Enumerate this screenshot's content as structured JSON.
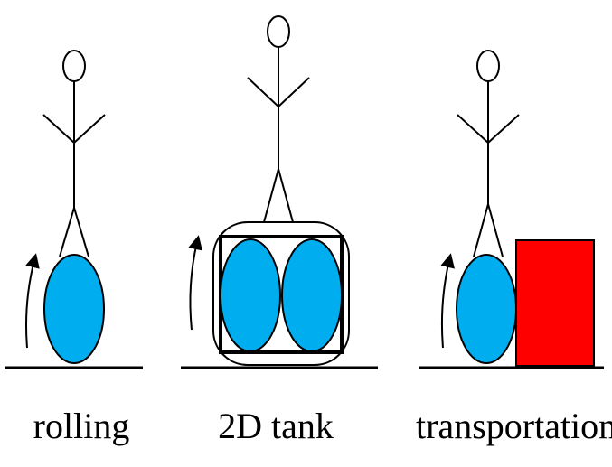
{
  "panels": [
    {
      "label": "rolling"
    },
    {
      "label": "2D tank"
    },
    {
      "label": "transportation"
    }
  ],
  "colors": {
    "wheel": "#00AEEF",
    "box": "#FF0000",
    "line": "#000000"
  }
}
